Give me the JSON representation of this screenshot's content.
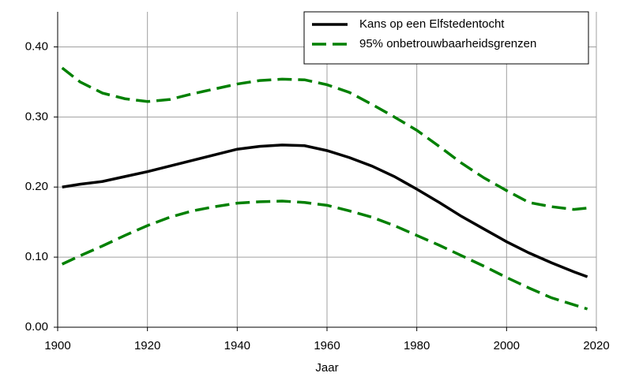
{
  "chart_data": {
    "type": "line",
    "x_label": "Jaar",
    "x": [
      1901,
      1905,
      1910,
      1915,
      1920,
      1925,
      1930,
      1935,
      1940,
      1945,
      1950,
      1955,
      1960,
      1965,
      1970,
      1975,
      1980,
      1985,
      1990,
      1995,
      2000,
      2005,
      2010,
      2015,
      2018
    ],
    "series": [
      {
        "name": "Kans op een Elfstedentocht",
        "color": "#000000",
        "dash": false,
        "values": [
          0.2,
          0.204,
          0.208,
          0.215,
          0.222,
          0.23,
          0.238,
          0.246,
          0.254,
          0.258,
          0.26,
          0.259,
          0.252,
          0.242,
          0.23,
          0.215,
          0.197,
          0.178,
          0.158,
          0.14,
          0.122,
          0.106,
          0.092,
          0.079,
          0.072
        ]
      },
      {
        "name": "95% onbetrouwbaarheidsgrenzen",
        "color": "#008000",
        "dash": true,
        "values": [
          0.37,
          0.35,
          0.334,
          0.326,
          0.322,
          0.325,
          0.333,
          0.34,
          0.347,
          0.352,
          0.354,
          0.353,
          0.346,
          0.335,
          0.318,
          0.3,
          0.281,
          0.258,
          0.234,
          0.213,
          0.195,
          0.178,
          0.172,
          0.168,
          0.17
        ]
      },
      {
        "color": "#008000",
        "dash": true,
        "values": [
          0.09,
          0.102,
          0.116,
          0.131,
          0.145,
          0.157,
          0.166,
          0.172,
          0.177,
          0.179,
          0.18,
          0.178,
          0.174,
          0.166,
          0.157,
          0.145,
          0.131,
          0.117,
          0.102,
          0.087,
          0.071,
          0.056,
          0.042,
          0.032,
          0.026
        ]
      }
    ],
    "xlim": [
      1900,
      2020
    ],
    "xticks": [
      1900,
      1920,
      1940,
      1960,
      1980,
      2000,
      2020
    ],
    "ylim": [
      0,
      0.45
    ],
    "yticks": [
      {
        "value": 0,
        "label": "0.00"
      },
      {
        "value": 0.1,
        "label": "0.10"
      },
      {
        "value": 0.2,
        "label": "0.20"
      },
      {
        "value": 0.3,
        "label": "0.30"
      },
      {
        "value": 0.4,
        "label": "0.40"
      }
    ],
    "grid": true,
    "legend": "top-right"
  }
}
